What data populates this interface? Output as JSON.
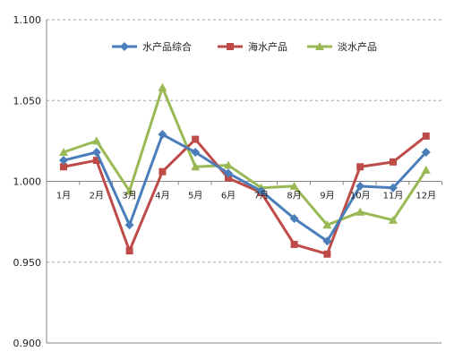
{
  "chart_data": {
    "type": "line",
    "categories": [
      "1月",
      "2月",
      "3月",
      "4月",
      "5月",
      "6月",
      "7月",
      "8月",
      "9月",
      "10月",
      "11月",
      "12月"
    ],
    "series": [
      {
        "name": "水产品综合",
        "color": "#4a7ebb",
        "marker": "diamond",
        "values": [
          1.013,
          1.018,
          0.973,
          1.029,
          1.018,
          1.005,
          0.994,
          0.977,
          0.963,
          0.997,
          0.996,
          1.018
        ]
      },
      {
        "name": "海水产品",
        "color": "#be4b48",
        "marker": "square",
        "values": [
          1.009,
          1.013,
          0.957,
          1.006,
          1.026,
          1.002,
          0.993,
          0.961,
          0.955,
          1.009,
          1.012,
          1.028
        ]
      },
      {
        "name": "淡水产品",
        "color": "#98b954",
        "marker": "triangle",
        "values": [
          1.018,
          1.025,
          0.994,
          1.058,
          1.009,
          1.01,
          0.996,
          0.997,
          0.973,
          0.981,
          0.976,
          1.007
        ]
      }
    ],
    "y_ticks": [
      "0.900",
      "0.950",
      "1.000",
      "1.050",
      "1.100"
    ],
    "ylim": [
      0.9,
      1.1
    ],
    "grid": true,
    "baseline": 1.0,
    "legend_position": "top"
  }
}
